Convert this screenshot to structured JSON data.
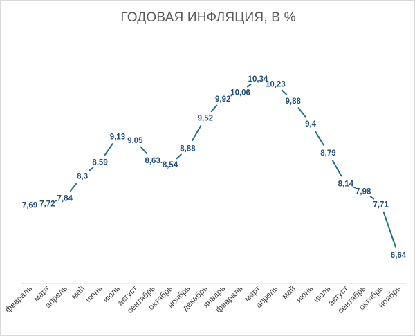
{
  "chart_data": {
    "type": "line",
    "title": "ГОДОВАЯ ИНФЛЯЦИЯ, В %",
    "xlabel": "",
    "ylabel": "",
    "categories": [
      "февраль",
      "март",
      "апрель",
      "май",
      "июнь",
      "июль",
      "август",
      "сентябрь",
      "октябрь",
      "ноябрь",
      "декабрь",
      "январь",
      "февраль",
      "март",
      "апрель",
      "май",
      "июнь",
      "июль",
      "август",
      "сентябрь",
      "октябрь",
      "ноябрь"
    ],
    "series": [
      {
        "values": [
          7.69,
          7.72,
          7.84,
          8.3,
          8.59,
          9.13,
          9.05,
          8.63,
          8.54,
          8.88,
          9.52,
          9.92,
          10.06,
          10.34,
          10.23,
          9.88,
          9.4,
          8.79,
          8.14,
          7.98,
          7.71,
          6.64
        ],
        "data_labels": [
          "7,69",
          "7,72",
          "7,84",
          "8,3",
          "8,59",
          "9,13",
          "9,05",
          "8,63",
          "8,54",
          "8,88",
          "9,52",
          "9,92",
          "10,06",
          "10,34",
          "10,23",
          "9,88",
          "9,4",
          "8,79",
          "8,14",
          "7,98",
          "7,71",
          "6,64"
        ],
        "color": "#1f6e8c"
      }
    ],
    "grid": false,
    "legend": "none"
  }
}
